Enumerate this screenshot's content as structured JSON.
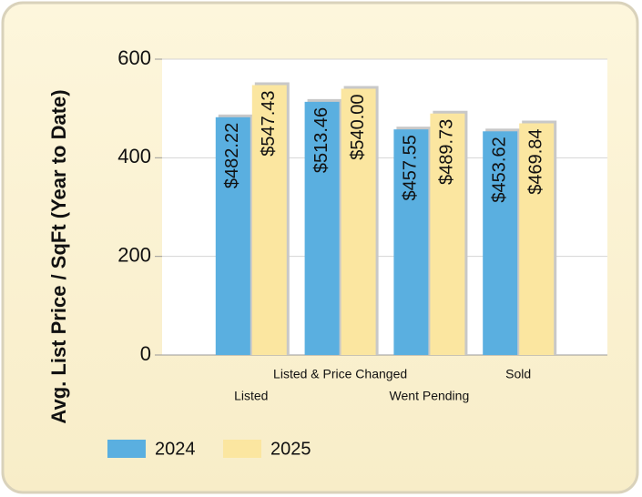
{
  "chart_data": {
    "type": "bar",
    "y_label": "Avg. List Price / SqFt (Year to Date)",
    "categories": [
      "Listed",
      "Listed & Price Changed",
      "Went Pending",
      "Sold"
    ],
    "series": [
      {
        "name": "2024",
        "color": "#5aafe0",
        "values": [
          482.22,
          513.46,
          457.55,
          453.62
        ],
        "value_labels": [
          "$482.22",
          "$513.46",
          "$457.55",
          "$453.62"
        ]
      },
      {
        "name": "2025",
        "color": "#fbe6a0",
        "values": [
          547.43,
          540.0,
          489.73,
          469.84
        ],
        "value_labels": [
          "$547.43",
          "$540.00",
          "$489.73",
          "$469.84"
        ]
      }
    ],
    "ylim": [
      0,
      600
    ],
    "yticks": [
      0,
      200,
      400,
      600
    ],
    "grid": true,
    "legend": "bottom"
  }
}
